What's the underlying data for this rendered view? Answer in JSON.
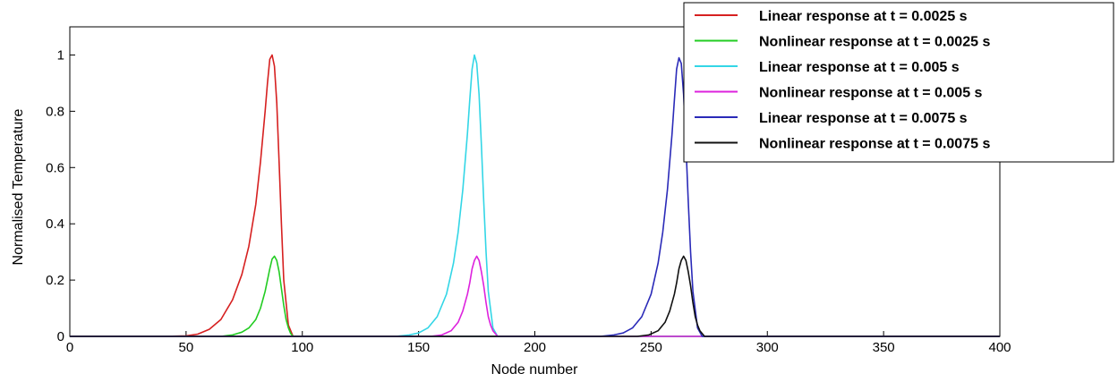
{
  "chart_data": {
    "type": "line",
    "title": "",
    "xlabel": "Node number",
    "ylabel": "Normalised Temperature",
    "xlim": [
      0,
      400
    ],
    "ylim": [
      0,
      1.1
    ],
    "xticks": [
      0,
      50,
      100,
      150,
      200,
      250,
      300,
      350,
      400
    ],
    "yticks": [
      0,
      0.2,
      0.4,
      0.6,
      0.8,
      1
    ],
    "ytick_labels": [
      "0",
      "0.2",
      "0.4",
      "0.6",
      "0.8",
      "1"
    ],
    "grid": false,
    "legend_position": "top-right",
    "series": [
      {
        "name": "Linear response at t = 0.0025 s",
        "color": "#d62020",
        "x": [
          0,
          40,
          50,
          55,
          60,
          65,
          70,
          74,
          77,
          80,
          82,
          84,
          85,
          86,
          87,
          88,
          89,
          90,
          91,
          92,
          94,
          96,
          100,
          400
        ],
        "y": [
          0,
          0,
          0.002,
          0.008,
          0.025,
          0.06,
          0.13,
          0.22,
          0.32,
          0.47,
          0.62,
          0.8,
          0.9,
          0.985,
          1.0,
          0.96,
          0.83,
          0.62,
          0.4,
          0.2,
          0.04,
          0,
          0,
          0
        ]
      },
      {
        "name": "Nonlinear response at t = 0.0025 s",
        "color": "#22cc22",
        "x": [
          0,
          65,
          70,
          74,
          77,
          80,
          82,
          84,
          85,
          86,
          87,
          88,
          89,
          90,
          91,
          92,
          93,
          94,
          95,
          96,
          100,
          400
        ],
        "y": [
          0,
          0,
          0.005,
          0.015,
          0.03,
          0.06,
          0.1,
          0.16,
          0.2,
          0.24,
          0.275,
          0.285,
          0.27,
          0.23,
          0.17,
          0.11,
          0.06,
          0.03,
          0.01,
          0,
          0,
          0
        ]
      },
      {
        "name": "Linear response at t = 0.005 s",
        "color": "#33d6e6",
        "x": [
          0,
          140,
          146,
          150,
          154,
          158,
          162,
          165,
          167,
          169,
          171,
          172,
          173,
          174,
          175,
          176,
          177,
          178,
          179,
          180,
          182,
          184,
          188,
          400
        ],
        "y": [
          0,
          0,
          0.005,
          0.012,
          0.03,
          0.07,
          0.15,
          0.26,
          0.37,
          0.52,
          0.72,
          0.84,
          0.95,
          1.0,
          0.97,
          0.86,
          0.68,
          0.48,
          0.3,
          0.16,
          0.03,
          0,
          0,
          0
        ]
      },
      {
        "name": "Nonlinear response at t = 0.005 s",
        "color": "#dd22dd",
        "x": [
          0,
          155,
          160,
          164,
          167,
          169,
          171,
          172,
          173,
          174,
          175,
          176,
          177,
          178,
          179,
          180,
          181,
          182,
          183,
          184,
          188,
          400
        ],
        "y": [
          0,
          0,
          0.005,
          0.02,
          0.05,
          0.09,
          0.15,
          0.19,
          0.24,
          0.27,
          0.285,
          0.27,
          0.23,
          0.18,
          0.12,
          0.07,
          0.04,
          0.02,
          0.01,
          0,
          0,
          0
        ]
      },
      {
        "name": "Linear response at t = 0.0075 s",
        "color": "#2a2ab8",
        "x": [
          0,
          228,
          234,
          238,
          242,
          246,
          250,
          253,
          255,
          257,
          259,
          260,
          261,
          262,
          263,
          264,
          265,
          266,
          267,
          268,
          270,
          272,
          276,
          400
        ],
        "y": [
          0,
          0,
          0.005,
          0.012,
          0.03,
          0.07,
          0.15,
          0.26,
          0.37,
          0.52,
          0.72,
          0.84,
          0.95,
          0.99,
          0.97,
          0.86,
          0.68,
          0.48,
          0.3,
          0.16,
          0.03,
          0,
          0,
          0
        ]
      },
      {
        "name": "Nonlinear response at t = 0.0075 s",
        "color": "#111111",
        "x": [
          0,
          244,
          249,
          253,
          256,
          258,
          260,
          261,
          262,
          263,
          264,
          265,
          266,
          267,
          268,
          269,
          270,
          271,
          272,
          273,
          277,
          400
        ],
        "y": [
          0,
          0,
          0.005,
          0.02,
          0.05,
          0.09,
          0.15,
          0.19,
          0.24,
          0.27,
          0.285,
          0.27,
          0.23,
          0.18,
          0.12,
          0.07,
          0.04,
          0.02,
          0.01,
          0,
          0,
          0
        ]
      }
    ]
  }
}
